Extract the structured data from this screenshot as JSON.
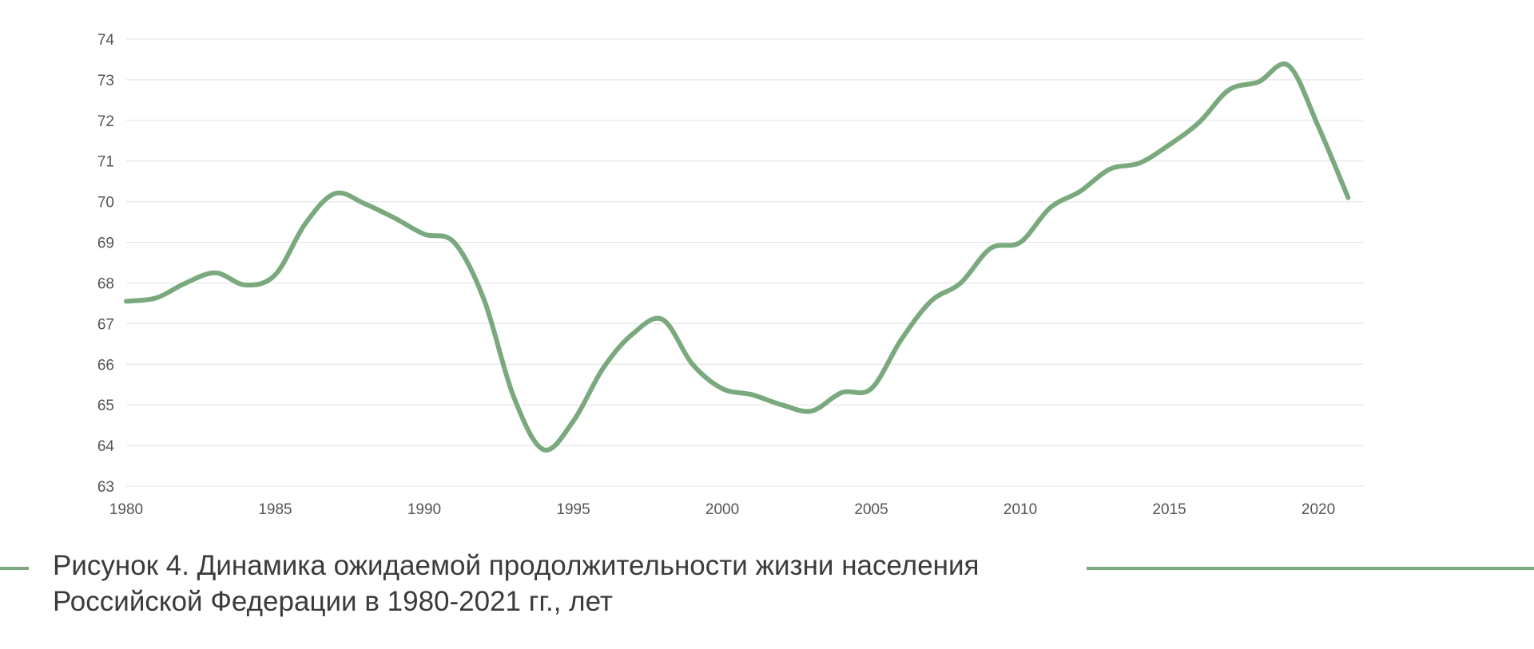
{
  "colors": {
    "series": "#7aa97d",
    "accent_lines": "#7aa97d"
  },
  "caption": {
    "line1": "Рисунок 4. Динамика ожидаемой продолжительности жизни населения",
    "line2": "Российской Федерации в 1980-2021 гг., лет"
  },
  "chart_data": {
    "type": "line",
    "title": "",
    "xlabel": "",
    "ylabel": "",
    "xlim": [
      1980,
      2021.5
    ],
    "ylim": [
      63,
      74
    ],
    "x_ticks": [
      1980,
      1985,
      1990,
      1995,
      2000,
      2005,
      2010,
      2015,
      2020
    ],
    "y_ticks": [
      63,
      64,
      65,
      66,
      67,
      68,
      69,
      70,
      71,
      72,
      73,
      74
    ],
    "grid": "horizontal",
    "legend": "none",
    "series": [
      {
        "x": [
          1980,
          1981,
          1982,
          1983,
          1984,
          1985,
          1986,
          1987,
          1988,
          1989,
          1990,
          1991,
          1992,
          1993,
          1994,
          1995,
          1996,
          1997,
          1998,
          1999,
          2000,
          2001,
          2002,
          2003,
          2004,
          2005,
          2006,
          2007,
          2008,
          2009,
          2010,
          2011,
          2012,
          2013,
          2014,
          2015,
          2016,
          2017,
          2018,
          2019,
          2020,
          2021
        ],
        "values": [
          67.55,
          67.63,
          68.0,
          68.25,
          67.95,
          68.2,
          69.45,
          70.2,
          69.95,
          69.6,
          69.2,
          69.0,
          67.6,
          65.2,
          63.9,
          64.6,
          65.9,
          66.75,
          67.1,
          66.0,
          65.4,
          65.25,
          65.0,
          64.85,
          65.3,
          65.4,
          66.6,
          67.55,
          68.0,
          68.85,
          69.0,
          69.85,
          70.25,
          70.8,
          70.95,
          71.4,
          71.95,
          72.75,
          72.95,
          73.35,
          71.85,
          70.1
        ]
      }
    ]
  }
}
